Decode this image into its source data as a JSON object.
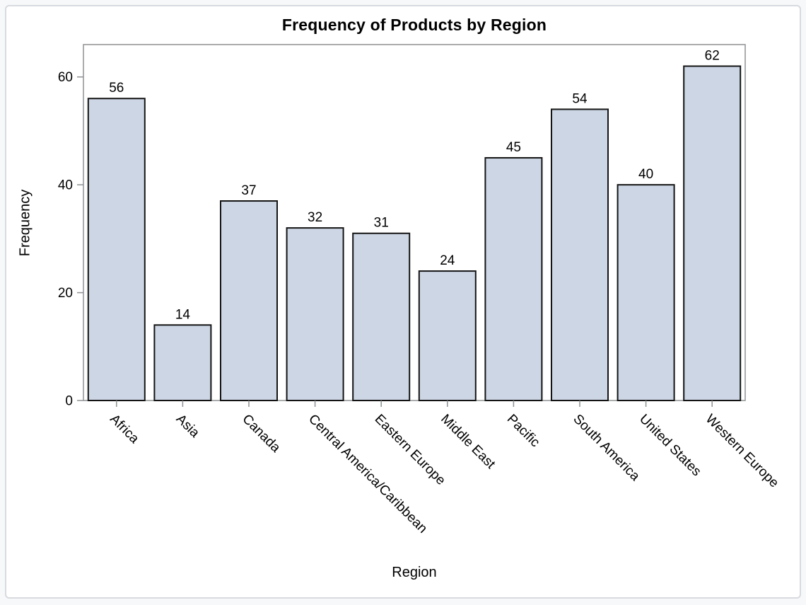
{
  "page": {
    "background_color": "#f6f8fa",
    "card_background": "#ffffff",
    "card_border_color": "#d7dade"
  },
  "chart_data": {
    "type": "bar",
    "title": "Frequency of Products by Region",
    "xlabel": "Region",
    "ylabel": "Frequency",
    "categories": [
      "Africa",
      "Asia",
      "Canada",
      "Central America/Caribbean",
      "Eastern Europe",
      "Middle East",
      "Pacific",
      "South America",
      "United States",
      "Western Europe"
    ],
    "values": [
      56,
      14,
      37,
      32,
      31,
      24,
      45,
      54,
      40,
      62
    ],
    "value_labels_shown": true,
    "yticks": [
      0,
      20,
      40,
      60
    ],
    "ylim": [
      0,
      66
    ],
    "grid": false,
    "legend": "none",
    "x_label_rotation_deg": 45,
    "bar_fill": "#ccd6e4",
    "bar_stroke": "#141414",
    "axis_color": "#8d9093",
    "text_color": "#000000"
  }
}
